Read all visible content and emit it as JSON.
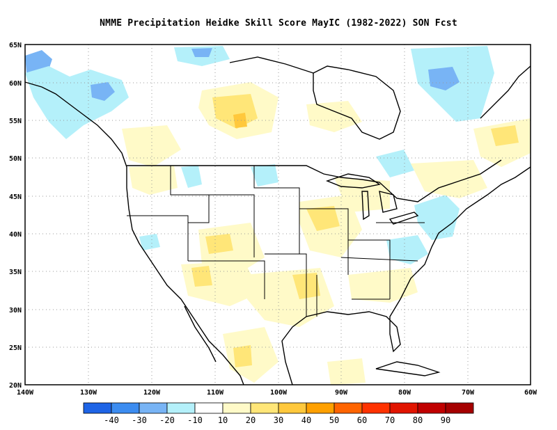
{
  "title": "NMME  Precipitation Heidke Skill Score MayIC (1982-2022) SON Fcst",
  "map": {
    "lon_labels": [
      "140W",
      "130W",
      "120W",
      "110W",
      "100W",
      "90W",
      "80W",
      "70W",
      "60W"
    ],
    "lat_labels": [
      "65N",
      "60N",
      "55N",
      "50N",
      "45N",
      "40N",
      "35N",
      "30N",
      "25N",
      "20N"
    ]
  },
  "colorbar": {
    "colors": [
      "#1e64e6",
      "#3c8cf0",
      "#78b4f5",
      "#b4f0fa",
      "#ffffff",
      "#fffac8",
      "#ffe678",
      "#ffc83c",
      "#ffa000",
      "#ff6400",
      "#ff3200",
      "#e11400",
      "#c00000",
      "#a50000"
    ],
    "labels": [
      "-40",
      "-30",
      "-20",
      "-10",
      "10",
      "20",
      "30",
      "40",
      "50",
      "60",
      "70",
      "80",
      "90"
    ]
  }
}
